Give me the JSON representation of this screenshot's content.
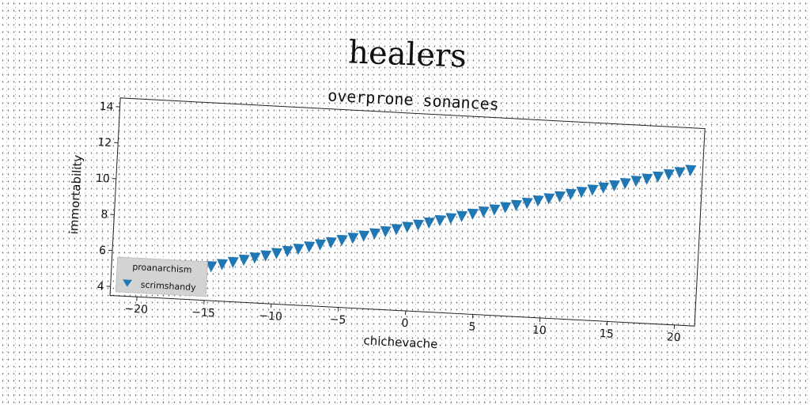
{
  "chart_data": {
    "type": "scatter",
    "suptitle": "healers",
    "title": "overprone sonances",
    "xlabel": "chichevache",
    "ylabel": "immortability",
    "xlim": [
      -22,
      21.5
    ],
    "ylim": [
      3.5,
      14.5
    ],
    "xticks": [
      -20,
      -15,
      -10,
      -5,
      0,
      5,
      10,
      15,
      20
    ],
    "yticks": [
      4,
      6,
      8,
      10,
      12,
      14
    ],
    "legend": {
      "title": "proanarchism",
      "location": "lower-left"
    },
    "marker": "triangle-down",
    "color": "#1f77b4",
    "series": [
      {
        "name": "scrimshandy",
        "x": [
          -21.0,
          -20.2,
          -19.4,
          -18.6,
          -17.8,
          -17.0,
          -16.2,
          -15.4,
          -14.6,
          -13.8,
          -13.0,
          -12.2,
          -11.4,
          -10.6,
          -9.8,
          -9.0,
          -8.2,
          -7.4,
          -6.6,
          -5.8,
          -5.0,
          -4.2,
          -3.4,
          -2.6,
          -1.8,
          -1.0,
          -0.2,
          0.6,
          1.4,
          2.2,
          3.0,
          3.8,
          4.6,
          5.4,
          6.2,
          7.0,
          7.8,
          8.6,
          9.4,
          10.2,
          11.0,
          11.8,
          12.6,
          13.4,
          14.2,
          15.0,
          15.8,
          16.6,
          17.4,
          18.2,
          19.0,
          19.8,
          20.6
        ],
        "y": [
          4.15,
          4.3,
          4.46,
          4.61,
          4.76,
          4.92,
          5.07,
          5.22,
          5.38,
          5.53,
          5.68,
          5.84,
          5.99,
          6.14,
          6.3,
          6.45,
          6.6,
          6.76,
          6.91,
          7.06,
          7.22,
          7.37,
          7.52,
          7.68,
          7.83,
          7.98,
          8.14,
          8.29,
          8.44,
          8.6,
          8.75,
          8.9,
          9.06,
          9.21,
          9.36,
          9.52,
          9.67,
          9.82,
          9.98,
          10.13,
          10.28,
          10.44,
          10.59,
          10.74,
          10.9,
          11.05,
          11.2,
          11.36,
          11.51,
          11.66,
          11.82,
          11.97,
          12.12
        ]
      }
    ]
  }
}
